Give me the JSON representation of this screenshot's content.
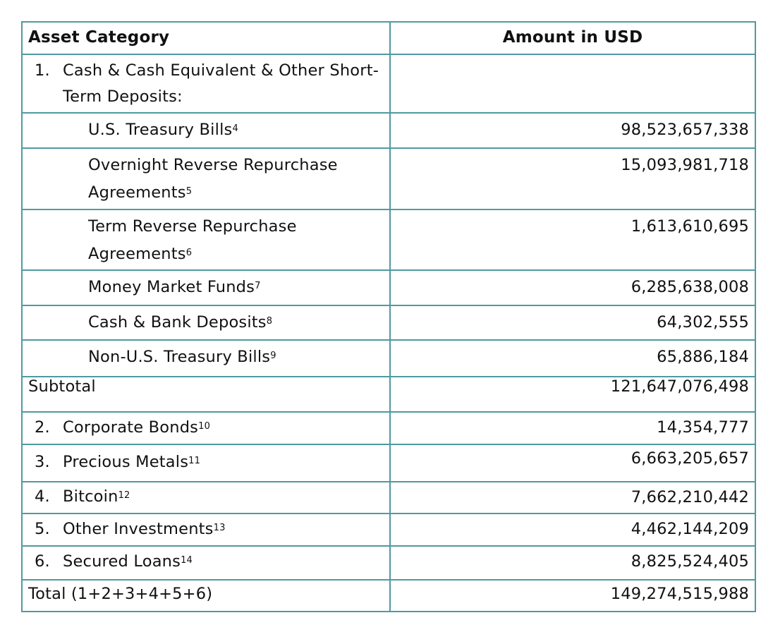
{
  "headers": {
    "category": "Asset Category",
    "amount": "Amount in USD"
  },
  "section1": {
    "number": "1.",
    "label": "Cash & Cash Equivalent & Other Short-Term Deposits:"
  },
  "subitems": [
    {
      "label": "U.S. Treasury Bills",
      "note": "4",
      "amount": "98,523,657,338"
    },
    {
      "label": "Overnight Reverse Repurchase Agreements",
      "note": "5",
      "amount": "15,093,981,718"
    },
    {
      "label": "Term Reverse Repurchase Agreements",
      "note": "6",
      "amount": "1,613,610,695"
    },
    {
      "label": "Money Market Funds",
      "note": "7",
      "amount": "6,285,638,008"
    },
    {
      "label": "Cash & Bank Deposits",
      "note": "8",
      "amount": "64,302,555"
    },
    {
      "label": "Non-U.S. Treasury Bills",
      "note": "9",
      "amount": "65,886,184"
    }
  ],
  "subtotal": {
    "label": "Subtotal",
    "amount": "121,647,076,498"
  },
  "items": [
    {
      "number": "2.",
      "label": "Corporate Bonds",
      "note": "10",
      "amount": "14,354,777"
    },
    {
      "number": "3.",
      "label": "Precious Metals",
      "note": "11",
      "amount": "6,663,205,657"
    },
    {
      "number": "4.",
      "label": "Bitcoin",
      "note": "12",
      "amount": "7,662,210,442"
    },
    {
      "number": "5.",
      "label": "Other Investments",
      "note": "13",
      "amount": "4,462,144,209"
    },
    {
      "number": "6.",
      "label": "Secured Loans",
      "note": "14",
      "amount": "8,825,524,405"
    }
  ],
  "total": {
    "label": "Total (1+2+3+4+5+6)",
    "amount": "149,274,515,988"
  }
}
